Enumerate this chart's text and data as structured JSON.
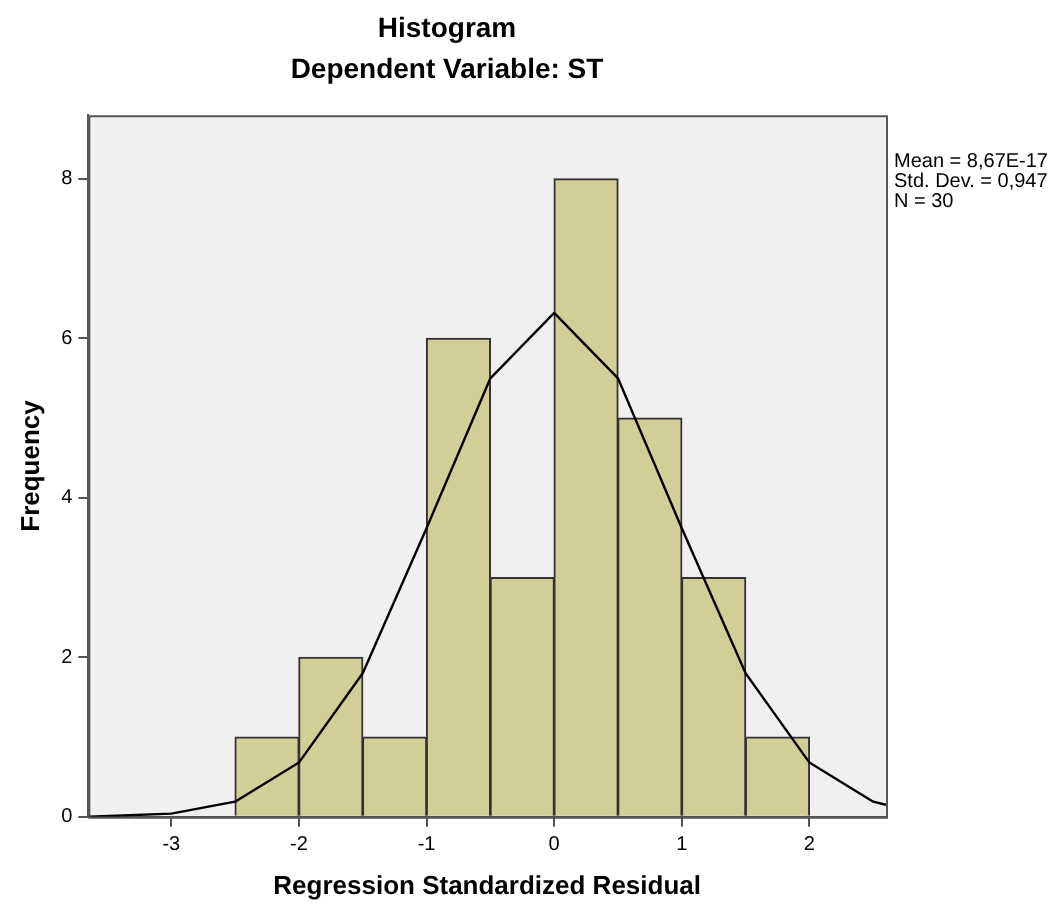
{
  "chart_data": {
    "type": "histogram",
    "title": "Histogram",
    "subtitle": "Dependent Variable: ST",
    "xlabel": "Regression Standardized Residual",
    "ylabel": "Frequency",
    "bins": [
      -2.5,
      -2,
      -1.5,
      -1,
      -0.5,
      0,
      0.5,
      1,
      1.5,
      2
    ],
    "values": [
      1,
      2,
      1,
      6,
      3,
      8,
      5,
      3,
      1
    ],
    "color": "#d3ce97",
    "series": [
      {
        "type": "line",
        "color": "#000000",
        "x": [
          -3.65,
          -3,
          -2.5,
          -2,
          -1.5,
          -1,
          -0.5,
          0,
          0.5,
          1,
          1.5,
          2,
          2.5,
          2.6
        ],
        "values": [
          0,
          0.04,
          0.19,
          0.68,
          1.8,
          3.62,
          5.5,
          6.32,
          5.5,
          3.62,
          1.8,
          0.68,
          0.19,
          0.15
        ]
      }
    ],
    "xlim": [
      -3.65,
      2.6
    ],
    "xticks": [
      -3,
      -2,
      -1,
      0,
      1,
      2
    ],
    "ylim": [
      0,
      8.8
    ],
    "yticks": [
      0,
      2,
      4,
      6,
      8
    ],
    "grid": false,
    "legend": false,
    "marker": "none",
    "line_style": "solid",
    "annotations": [
      "Mean = 8,67E-17",
      "Std. Dev. = 0,947",
      "N = 30"
    ]
  }
}
